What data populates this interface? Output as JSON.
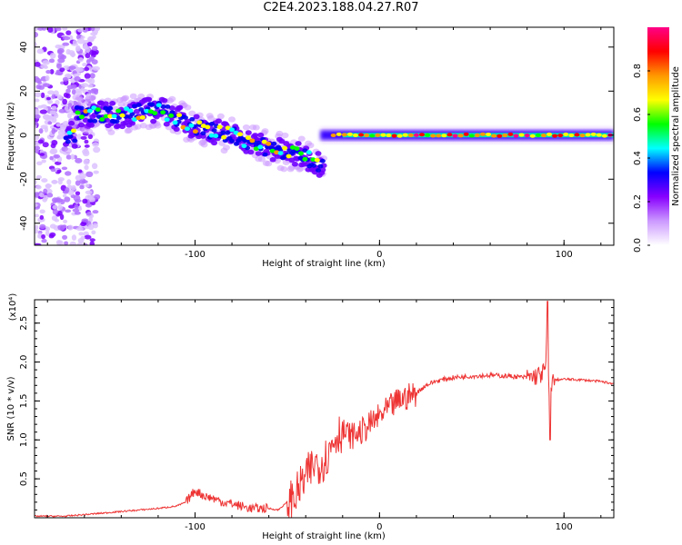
{
  "title": "C2E4.2023.188.04.27.R07",
  "chart_data": [
    {
      "type": "heatmap",
      "xlabel": "Height of straight line (km)",
      "ylabel": "Frequency (Hz)",
      "xlim": [
        -187,
        127
      ],
      "ylim": [
        -50,
        49
      ],
      "x_ticks": [
        -100,
        0,
        100
      ],
      "y_ticks": [
        -40,
        -20,
        0,
        20,
        40
      ],
      "grid": false,
      "colorbar": {
        "label": "Normalized spectral amplitude",
        "range": [
          0,
          1
        ],
        "ticks": [
          "0.0",
          "0.2",
          "0.4",
          "0.6",
          "0.8"
        ],
        "colors": [
          "#ffffff",
          "#cc99ff",
          "#8800ff",
          "#0000ff",
          "#00ffff",
          "#00ff00",
          "#ffff00",
          "#ff9900",
          "#ff0000",
          "#ff0088"
        ]
      },
      "ridge": {
        "points": [
          [
            -165,
            10
          ],
          [
            -140,
            9
          ],
          [
            -120,
            12
          ],
          [
            -100,
            4
          ],
          [
            -80,
            0
          ],
          [
            -60,
            -6
          ],
          [
            -40,
            -10
          ],
          [
            -32,
            -13
          ],
          [
            -25,
            -2
          ],
          [
            -15,
            1
          ],
          [
            0,
            0
          ],
          [
            10,
            1
          ],
          [
            50,
            0
          ],
          [
            100,
            0
          ],
          [
            127,
            0
          ]
        ]
      }
    },
    {
      "type": "line",
      "xlabel": "Height of straight line (km)",
      "ylabel": "SNR (10 * v/v)",
      "y_multiplier": "(x10⁴)",
      "xlim": [
        -187,
        127
      ],
      "ylim": [
        0,
        2.8
      ],
      "x_ticks": [
        -100,
        0,
        100
      ],
      "y_ticks": [
        "0.5",
        "1.0",
        "1.5",
        "2.0",
        "2.5"
      ],
      "color": "#ee3333",
      "series": [
        {
          "x": [
            -187,
            -170,
            -160,
            -155,
            -150,
            -140,
            -130,
            -120,
            -110,
            -105,
            -100,
            -95,
            -90,
            -85,
            -80,
            -75,
            -70,
            -65,
            -60,
            -55,
            -50,
            -45,
            -42,
            -40,
            -38,
            -35,
            -32,
            -30,
            -28,
            -25,
            -22,
            -20,
            -15,
            -10,
            -5,
            0,
            5,
            10,
            15,
            20,
            25,
            30,
            35,
            40,
            50,
            60,
            70,
            80,
            85,
            88,
            90,
            91,
            92,
            93,
            95,
            100,
            110,
            120,
            127
          ],
          "y": [
            0.02,
            0.02,
            0.04,
            0.05,
            0.06,
            0.08,
            0.1,
            0.12,
            0.15,
            0.2,
            0.35,
            0.28,
            0.25,
            0.2,
            0.18,
            0.15,
            0.12,
            0.12,
            0.12,
            0.1,
            0.2,
            0.3,
            0.45,
            0.5,
            0.6,
            0.7,
            0.7,
            0.75,
            0.8,
            1.0,
            1.1,
            1.1,
            1.05,
            1.1,
            1.2,
            1.3,
            1.4,
            1.5,
            1.55,
            1.6,
            1.7,
            1.75,
            1.78,
            1.8,
            1.82,
            1.83,
            1.82,
            1.8,
            1.82,
            1.85,
            1.9,
            2.5,
            1.4,
            1.75,
            1.77,
            1.78,
            1.77,
            1.75,
            1.72
          ]
        }
      ]
    }
  ]
}
